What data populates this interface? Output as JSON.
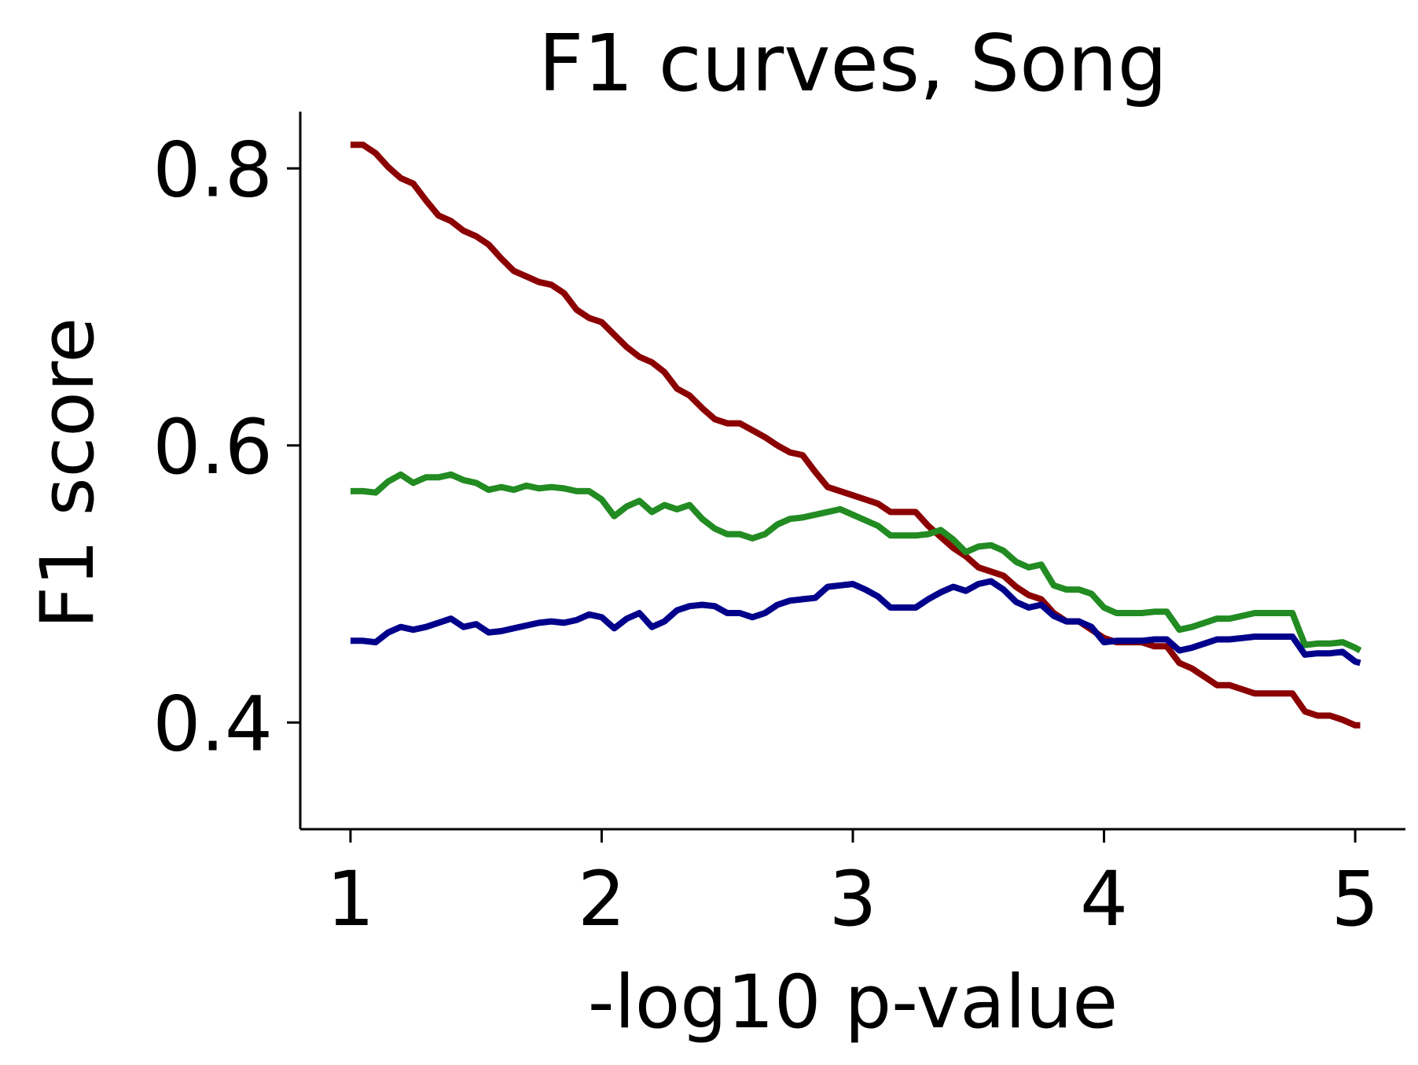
{
  "chart_data": {
    "type": "line",
    "title": "F1 curves, Song",
    "xlabel": "-log10 p-value",
    "ylabel": "F1 score",
    "xlim": [
      0.8,
      5.2
    ],
    "ylim": [
      0.323,
      0.841
    ],
    "xticks": [
      1,
      2,
      3,
      4,
      5
    ],
    "xtick_labels": [
      "1",
      "2",
      "3",
      "4",
      "5"
    ],
    "yticks": [
      0.4,
      0.6,
      0.8
    ],
    "ytick_labels": [
      "0.4",
      "0.6",
      "0.8"
    ],
    "grid": false,
    "series": [
      {
        "color": "#8b0000",
        "points": [
          [
            1.0,
            0.817
          ],
          [
            1.05,
            0.817
          ],
          [
            1.1,
            0.811
          ],
          [
            1.15,
            0.801
          ],
          [
            1.2,
            0.793
          ],
          [
            1.25,
            0.789
          ],
          [
            1.3,
            0.777
          ],
          [
            1.35,
            0.766
          ],
          [
            1.4,
            0.762
          ],
          [
            1.45,
            0.755
          ],
          [
            1.5,
            0.751
          ],
          [
            1.55,
            0.745
          ],
          [
            1.6,
            0.735
          ],
          [
            1.65,
            0.726
          ],
          [
            1.7,
            0.722
          ],
          [
            1.75,
            0.718
          ],
          [
            1.8,
            0.716
          ],
          [
            1.85,
            0.71
          ],
          [
            1.9,
            0.698
          ],
          [
            1.95,
            0.692
          ],
          [
            2.0,
            0.689
          ],
          [
            2.05,
            0.68
          ],
          [
            2.1,
            0.671
          ],
          [
            2.15,
            0.664
          ],
          [
            2.2,
            0.66
          ],
          [
            2.25,
            0.653
          ],
          [
            2.3,
            0.641
          ],
          [
            2.35,
            0.636
          ],
          [
            2.4,
            0.627
          ],
          [
            2.45,
            0.619
          ],
          [
            2.5,
            0.616
          ],
          [
            2.55,
            0.616
          ],
          [
            2.6,
            0.611
          ],
          [
            2.65,
            0.606
          ],
          [
            2.7,
            0.6
          ],
          [
            2.75,
            0.595
          ],
          [
            2.8,
            0.593
          ],
          [
            2.85,
            0.581
          ],
          [
            2.9,
            0.57
          ],
          [
            2.95,
            0.567
          ],
          [
            3.0,
            0.564
          ],
          [
            3.05,
            0.561
          ],
          [
            3.1,
            0.558
          ],
          [
            3.15,
            0.552
          ],
          [
            3.2,
            0.552
          ],
          [
            3.25,
            0.552
          ],
          [
            3.3,
            0.542
          ],
          [
            3.35,
            0.534
          ],
          [
            3.4,
            0.526
          ],
          [
            3.45,
            0.52
          ],
          [
            3.5,
            0.512
          ],
          [
            3.55,
            0.509
          ],
          [
            3.6,
            0.506
          ],
          [
            3.65,
            0.498
          ],
          [
            3.7,
            0.492
          ],
          [
            3.75,
            0.489
          ],
          [
            3.8,
            0.479
          ],
          [
            3.85,
            0.473
          ],
          [
            3.9,
            0.473
          ],
          [
            3.95,
            0.467
          ],
          [
            4.0,
            0.461
          ],
          [
            4.05,
            0.458
          ],
          [
            4.1,
            0.458
          ],
          [
            4.15,
            0.458
          ],
          [
            4.2,
            0.455
          ],
          [
            4.25,
            0.455
          ],
          [
            4.3,
            0.443
          ],
          [
            4.35,
            0.439
          ],
          [
            4.4,
            0.433
          ],
          [
            4.45,
            0.427
          ],
          [
            4.5,
            0.427
          ],
          [
            4.55,
            0.424
          ],
          [
            4.6,
            0.421
          ],
          [
            4.65,
            0.421
          ],
          [
            4.7,
            0.421
          ],
          [
            4.75,
            0.421
          ],
          [
            4.8,
            0.408
          ],
          [
            4.85,
            0.405
          ],
          [
            4.9,
            0.405
          ],
          [
            4.95,
            0.402
          ],
          [
            5.0,
            0.398
          ],
          [
            5.02,
            0.398
          ]
        ]
      },
      {
        "color": "#228b22",
        "points": [
          [
            1.0,
            0.567
          ],
          [
            1.05,
            0.567
          ],
          [
            1.1,
            0.566
          ],
          [
            1.15,
            0.574
          ],
          [
            1.2,
            0.579
          ],
          [
            1.25,
            0.573
          ],
          [
            1.3,
            0.577
          ],
          [
            1.35,
            0.577
          ],
          [
            1.4,
            0.579
          ],
          [
            1.45,
            0.575
          ],
          [
            1.5,
            0.573
          ],
          [
            1.55,
            0.568
          ],
          [
            1.6,
            0.57
          ],
          [
            1.65,
            0.568
          ],
          [
            1.7,
            0.571
          ],
          [
            1.75,
            0.569
          ],
          [
            1.8,
            0.57
          ],
          [
            1.85,
            0.569
          ],
          [
            1.9,
            0.567
          ],
          [
            1.95,
            0.567
          ],
          [
            2.0,
            0.561
          ],
          [
            2.05,
            0.549
          ],
          [
            2.1,
            0.556
          ],
          [
            2.15,
            0.56
          ],
          [
            2.2,
            0.552
          ],
          [
            2.25,
            0.557
          ],
          [
            2.3,
            0.554
          ],
          [
            2.35,
            0.557
          ],
          [
            2.4,
            0.547
          ],
          [
            2.45,
            0.54
          ],
          [
            2.5,
            0.536
          ],
          [
            2.55,
            0.536
          ],
          [
            2.6,
            0.533
          ],
          [
            2.65,
            0.536
          ],
          [
            2.7,
            0.543
          ],
          [
            2.75,
            0.547
          ],
          [
            2.8,
            0.548
          ],
          [
            2.85,
            0.55
          ],
          [
            2.9,
            0.552
          ],
          [
            2.95,
            0.554
          ],
          [
            3.0,
            0.55
          ],
          [
            3.05,
            0.546
          ],
          [
            3.1,
            0.542
          ],
          [
            3.15,
            0.535
          ],
          [
            3.2,
            0.535
          ],
          [
            3.25,
            0.535
          ],
          [
            3.3,
            0.536
          ],
          [
            3.35,
            0.539
          ],
          [
            3.4,
            0.532
          ],
          [
            3.45,
            0.523
          ],
          [
            3.5,
            0.527
          ],
          [
            3.55,
            0.528
          ],
          [
            3.6,
            0.524
          ],
          [
            3.65,
            0.516
          ],
          [
            3.7,
            0.512
          ],
          [
            3.75,
            0.514
          ],
          [
            3.8,
            0.499
          ],
          [
            3.85,
            0.496
          ],
          [
            3.9,
            0.496
          ],
          [
            3.95,
            0.493
          ],
          [
            4.0,
            0.483
          ],
          [
            4.05,
            0.479
          ],
          [
            4.1,
            0.479
          ],
          [
            4.15,
            0.479
          ],
          [
            4.2,
            0.48
          ],
          [
            4.25,
            0.48
          ],
          [
            4.3,
            0.467
          ],
          [
            4.35,
            0.469
          ],
          [
            4.4,
            0.472
          ],
          [
            4.45,
            0.475
          ],
          [
            4.5,
            0.475
          ],
          [
            4.55,
            0.477
          ],
          [
            4.6,
            0.479
          ],
          [
            4.65,
            0.479
          ],
          [
            4.7,
            0.479
          ],
          [
            4.75,
            0.479
          ],
          [
            4.8,
            0.456
          ],
          [
            4.85,
            0.457
          ],
          [
            4.9,
            0.457
          ],
          [
            4.95,
            0.458
          ],
          [
            5.0,
            0.454
          ],
          [
            5.02,
            0.452
          ]
        ]
      },
      {
        "color": "#00008b",
        "points": [
          [
            1.0,
            0.459
          ],
          [
            1.05,
            0.459
          ],
          [
            1.1,
            0.458
          ],
          [
            1.15,
            0.465
          ],
          [
            1.2,
            0.469
          ],
          [
            1.25,
            0.467
          ],
          [
            1.3,
            0.469
          ],
          [
            1.35,
            0.472
          ],
          [
            1.4,
            0.475
          ],
          [
            1.45,
            0.469
          ],
          [
            1.5,
            0.471
          ],
          [
            1.55,
            0.465
          ],
          [
            1.6,
            0.466
          ],
          [
            1.65,
            0.468
          ],
          [
            1.7,
            0.47
          ],
          [
            1.75,
            0.472
          ],
          [
            1.8,
            0.473
          ],
          [
            1.85,
            0.472
          ],
          [
            1.9,
            0.474
          ],
          [
            1.95,
            0.478
          ],
          [
            2.0,
            0.476
          ],
          [
            2.05,
            0.468
          ],
          [
            2.1,
            0.475
          ],
          [
            2.15,
            0.479
          ],
          [
            2.2,
            0.469
          ],
          [
            2.25,
            0.473
          ],
          [
            2.3,
            0.481
          ],
          [
            2.35,
            0.484
          ],
          [
            2.4,
            0.485
          ],
          [
            2.45,
            0.484
          ],
          [
            2.5,
            0.479
          ],
          [
            2.55,
            0.479
          ],
          [
            2.6,
            0.476
          ],
          [
            2.65,
            0.479
          ],
          [
            2.7,
            0.485
          ],
          [
            2.75,
            0.488
          ],
          [
            2.8,
            0.489
          ],
          [
            2.85,
            0.49
          ],
          [
            2.9,
            0.498
          ],
          [
            2.95,
            0.499
          ],
          [
            3.0,
            0.5
          ],
          [
            3.05,
            0.496
          ],
          [
            3.1,
            0.491
          ],
          [
            3.15,
            0.483
          ],
          [
            3.2,
            0.483
          ],
          [
            3.25,
            0.483
          ],
          [
            3.3,
            0.489
          ],
          [
            3.35,
            0.494
          ],
          [
            3.4,
            0.498
          ],
          [
            3.45,
            0.495
          ],
          [
            3.5,
            0.5
          ],
          [
            3.55,
            0.502
          ],
          [
            3.6,
            0.496
          ],
          [
            3.65,
            0.487
          ],
          [
            3.7,
            0.483
          ],
          [
            3.75,
            0.485
          ],
          [
            3.8,
            0.477
          ],
          [
            3.85,
            0.473
          ],
          [
            3.9,
            0.473
          ],
          [
            3.95,
            0.469
          ],
          [
            4.0,
            0.458
          ],
          [
            4.05,
            0.459
          ],
          [
            4.1,
            0.459
          ],
          [
            4.15,
            0.459
          ],
          [
            4.2,
            0.46
          ],
          [
            4.25,
            0.46
          ],
          [
            4.3,
            0.452
          ],
          [
            4.35,
            0.454
          ],
          [
            4.4,
            0.457
          ],
          [
            4.45,
            0.46
          ],
          [
            4.5,
            0.46
          ],
          [
            4.55,
            0.461
          ],
          [
            4.6,
            0.462
          ],
          [
            4.65,
            0.462
          ],
          [
            4.7,
            0.462
          ],
          [
            4.75,
            0.462
          ],
          [
            4.8,
            0.449
          ],
          [
            4.85,
            0.45
          ],
          [
            4.9,
            0.45
          ],
          [
            4.95,
            0.451
          ],
          [
            5.0,
            0.444
          ],
          [
            5.02,
            0.443
          ]
        ]
      }
    ]
  }
}
